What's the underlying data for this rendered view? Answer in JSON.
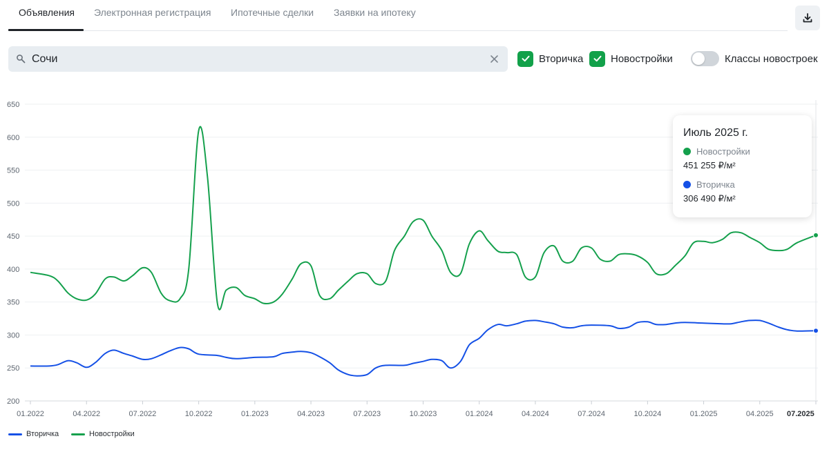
{
  "tabs": [
    {
      "label": "Объявления",
      "active": true
    },
    {
      "label": "Электронная регистрация",
      "active": false
    },
    {
      "label": "Ипотечные сделки",
      "active": false
    },
    {
      "label": "Заявки на ипотеку",
      "active": false
    }
  ],
  "toolbar": {
    "download_icon": "download-icon"
  },
  "search": {
    "value": "Сочи",
    "search_icon": "search-icon",
    "clear_icon": "close-icon"
  },
  "filters": {
    "secondary": {
      "label": "Вторичка",
      "checked": true
    },
    "newbuild": {
      "label": "Новостройки",
      "checked": true
    },
    "classes": {
      "label": "Классы новостроек",
      "on": false
    }
  },
  "colors": {
    "accent": "#12a14a",
    "secondary_series": "#1450e6",
    "newbuild_series": "#14a04c"
  },
  "tooltip": {
    "title": "Июль 2025 г.",
    "rows": [
      {
        "name": "Новостройки",
        "value": "451 255 ₽/м²",
        "color": "#14a04c"
      },
      {
        "name": "Вторичка",
        "value": "306 490 ₽/м²",
        "color": "#1450e6"
      }
    ]
  },
  "legend": [
    {
      "label": "Вторичка",
      "color": "#1450e6"
    },
    {
      "label": "Новостройки",
      "color": "#14a04c"
    }
  ],
  "chart_data": {
    "type": "line",
    "title": "",
    "xlabel": "",
    "ylabel": "",
    "ylim": [
      200,
      650
    ],
    "yticks": [
      200,
      250,
      300,
      350,
      400,
      450,
      500,
      550,
      600,
      650
    ],
    "grid": true,
    "legend_position": "bottom-left",
    "x_tick_labels": [
      "01.2022",
      "04.2022",
      "07.2022",
      "10.2022",
      "01.2023",
      "04.2023",
      "07.2023",
      "10.2023",
      "01.2024",
      "04.2024",
      "07.2024",
      "10.2024",
      "01.2025",
      "04.2025",
      "07.2025"
    ],
    "highlighted_tick": "07.2025",
    "x_start": "2022-01",
    "x_end": "2025-07",
    "series": [
      {
        "name": "Новостройки",
        "color": "#14a04c",
        "points": [
          [
            "2022-01",
            395
          ],
          [
            "2022-02",
            390
          ],
          [
            "2022-02-15",
            382
          ],
          [
            "2022-03",
            364
          ],
          [
            "2022-03-15",
            355
          ],
          [
            "2022-04",
            353
          ],
          [
            "2022-04-15",
            362
          ],
          [
            "2022-05",
            385
          ],
          [
            "2022-05-15",
            388
          ],
          [
            "2022-06",
            382
          ],
          [
            "2022-06-15",
            390
          ],
          [
            "2022-07",
            402
          ],
          [
            "2022-07-15",
            395
          ],
          [
            "2022-08",
            363
          ],
          [
            "2022-08-15",
            352
          ],
          [
            "2022-09",
            355
          ],
          [
            "2022-09-15",
            400
          ],
          [
            "2022-10",
            610
          ],
          [
            "2022-10-15",
            540
          ],
          [
            "2022-11",
            348
          ],
          [
            "2022-11-15",
            368
          ],
          [
            "2022-12",
            372
          ],
          [
            "2022-12-15",
            360
          ],
          [
            "2023-01",
            355
          ],
          [
            "2023-01-15",
            348
          ],
          [
            "2023-02",
            350
          ],
          [
            "2023-02-15",
            362
          ],
          [
            "2023-03",
            385
          ],
          [
            "2023-03-15",
            408
          ],
          [
            "2023-04",
            405
          ],
          [
            "2023-04-15",
            360
          ],
          [
            "2023-05",
            355
          ],
          [
            "2023-05-15",
            368
          ],
          [
            "2023-06",
            382
          ],
          [
            "2023-06-15",
            393
          ],
          [
            "2023-07",
            393
          ],
          [
            "2023-07-15",
            378
          ],
          [
            "2023-08",
            382
          ],
          [
            "2023-08-15",
            428
          ],
          [
            "2023-09",
            450
          ],
          [
            "2023-09-15",
            472
          ],
          [
            "2023-10",
            474
          ],
          [
            "2023-10-15",
            450
          ],
          [
            "2023-11",
            428
          ],
          [
            "2023-11-15",
            395
          ],
          [
            "2023-12",
            393
          ],
          [
            "2023-12-15",
            438
          ],
          [
            "2024-01",
            458
          ],
          [
            "2024-01-15",
            443
          ],
          [
            "2024-02",
            427
          ],
          [
            "2024-02-15",
            425
          ],
          [
            "2024-03",
            422
          ],
          [
            "2024-03-15",
            388
          ],
          [
            "2024-04",
            388
          ],
          [
            "2024-04-15",
            425
          ],
          [
            "2024-05",
            435
          ],
          [
            "2024-05-15",
            412
          ],
          [
            "2024-06",
            412
          ],
          [
            "2024-06-15",
            432
          ],
          [
            "2024-07",
            432
          ],
          [
            "2024-07-15",
            415
          ],
          [
            "2024-08",
            412
          ],
          [
            "2024-08-15",
            422
          ],
          [
            "2024-09",
            423
          ],
          [
            "2024-09-15",
            420
          ],
          [
            "2024-10",
            410
          ],
          [
            "2024-10-15",
            393
          ],
          [
            "2024-11",
            393
          ],
          [
            "2024-11-15",
            405
          ],
          [
            "2024-12",
            420
          ],
          [
            "2024-12-15",
            440
          ],
          [
            "2025-01",
            442
          ],
          [
            "2025-01-15",
            440
          ],
          [
            "2025-02",
            445
          ],
          [
            "2025-02-15",
            455
          ],
          [
            "2025-03",
            455
          ],
          [
            "2025-03-15",
            448
          ],
          [
            "2025-04",
            440
          ],
          [
            "2025-04-15",
            430
          ],
          [
            "2025-05",
            428
          ],
          [
            "2025-05-15",
            430
          ],
          [
            "2025-06",
            440
          ],
          [
            "2025-07",
            451.255
          ]
        ]
      },
      {
        "name": "Вторичка",
        "color": "#1450e6",
        "points": [
          [
            "2022-01",
            253
          ],
          [
            "2022-02",
            253
          ],
          [
            "2022-02-15",
            255
          ],
          [
            "2022-03",
            261
          ],
          [
            "2022-03-15",
            258
          ],
          [
            "2022-04",
            251
          ],
          [
            "2022-04-15",
            258
          ],
          [
            "2022-05",
            272
          ],
          [
            "2022-05-15",
            277
          ],
          [
            "2022-06",
            272
          ],
          [
            "2022-06-15",
            268
          ],
          [
            "2022-07",
            263
          ],
          [
            "2022-07-15",
            264
          ],
          [
            "2022-08",
            270
          ],
          [
            "2022-08-15",
            276
          ],
          [
            "2022-09",
            281
          ],
          [
            "2022-09-15",
            279
          ],
          [
            "2022-10",
            271
          ],
          [
            "2022-11",
            269
          ],
          [
            "2022-11-15",
            266
          ],
          [
            "2022-12",
            264
          ],
          [
            "2023-01",
            266
          ],
          [
            "2023-02",
            267
          ],
          [
            "2023-02-15",
            272
          ],
          [
            "2023-03",
            274
          ],
          [
            "2023-03-15",
            275
          ],
          [
            "2023-04",
            273
          ],
          [
            "2023-04-15",
            267
          ],
          [
            "2023-05",
            258
          ],
          [
            "2023-05-15",
            247
          ],
          [
            "2023-06",
            240
          ],
          [
            "2023-06-15",
            238
          ],
          [
            "2023-07",
            240
          ],
          [
            "2023-07-15",
            250
          ],
          [
            "2023-08",
            254
          ],
          [
            "2023-09",
            254
          ],
          [
            "2023-09-15",
            257
          ],
          [
            "2023-10",
            260
          ],
          [
            "2023-10-15",
            263
          ],
          [
            "2023-11",
            261
          ],
          [
            "2023-11-15",
            250
          ],
          [
            "2023-12",
            260
          ],
          [
            "2023-12-15",
            285
          ],
          [
            "2024-01",
            295
          ],
          [
            "2024-01-15",
            308
          ],
          [
            "2024-02",
            316
          ],
          [
            "2024-02-15",
            314
          ],
          [
            "2024-03",
            317
          ],
          [
            "2024-03-15",
            321
          ],
          [
            "2024-04",
            322
          ],
          [
            "2024-04-15",
            320
          ],
          [
            "2024-05",
            317
          ],
          [
            "2024-05-15",
            312
          ],
          [
            "2024-06",
            311
          ],
          [
            "2024-06-15",
            314
          ],
          [
            "2024-07",
            315
          ],
          [
            "2024-08",
            314
          ],
          [
            "2024-08-15",
            310
          ],
          [
            "2024-09",
            312
          ],
          [
            "2024-09-15",
            319
          ],
          [
            "2024-10",
            320
          ],
          [
            "2024-10-15",
            316
          ],
          [
            "2024-11",
            316
          ],
          [
            "2024-11-15",
            318
          ],
          [
            "2024-12",
            319
          ],
          [
            "2025-01",
            318
          ],
          [
            "2025-02",
            317
          ],
          [
            "2025-02-15",
            317
          ],
          [
            "2025-03",
            320
          ],
          [
            "2025-03-15",
            322
          ],
          [
            "2025-04",
            322
          ],
          [
            "2025-04-15",
            318
          ],
          [
            "2025-05",
            312
          ],
          [
            "2025-05-15",
            308
          ],
          [
            "2025-06",
            306
          ],
          [
            "2025-07",
            306.49
          ]
        ]
      }
    ]
  }
}
